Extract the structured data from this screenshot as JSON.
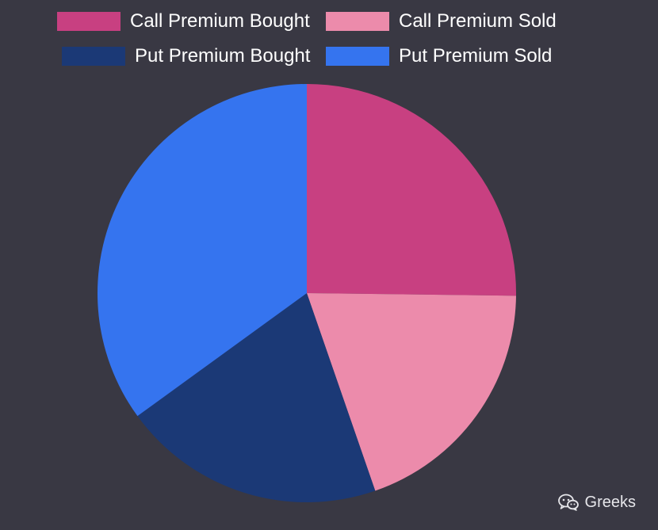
{
  "chart_data": {
    "type": "pie",
    "title": "",
    "slices": [
      {
        "label": "Call Premium Bought",
        "value": 25.2,
        "color": "#c84081"
      },
      {
        "label": "Call Premium Sold",
        "value": 19.5,
        "color": "#ec8bab"
      },
      {
        "label": "Put Premium Bought",
        "value": 20.3,
        "color": "#1b3976"
      },
      {
        "label": "Put Premium Sold",
        "value": 35.0,
        "color": "#3574ef"
      }
    ],
    "legend_position": "top"
  },
  "watermark": {
    "text": "Greeks",
    "icon": "wechat-icon"
  }
}
